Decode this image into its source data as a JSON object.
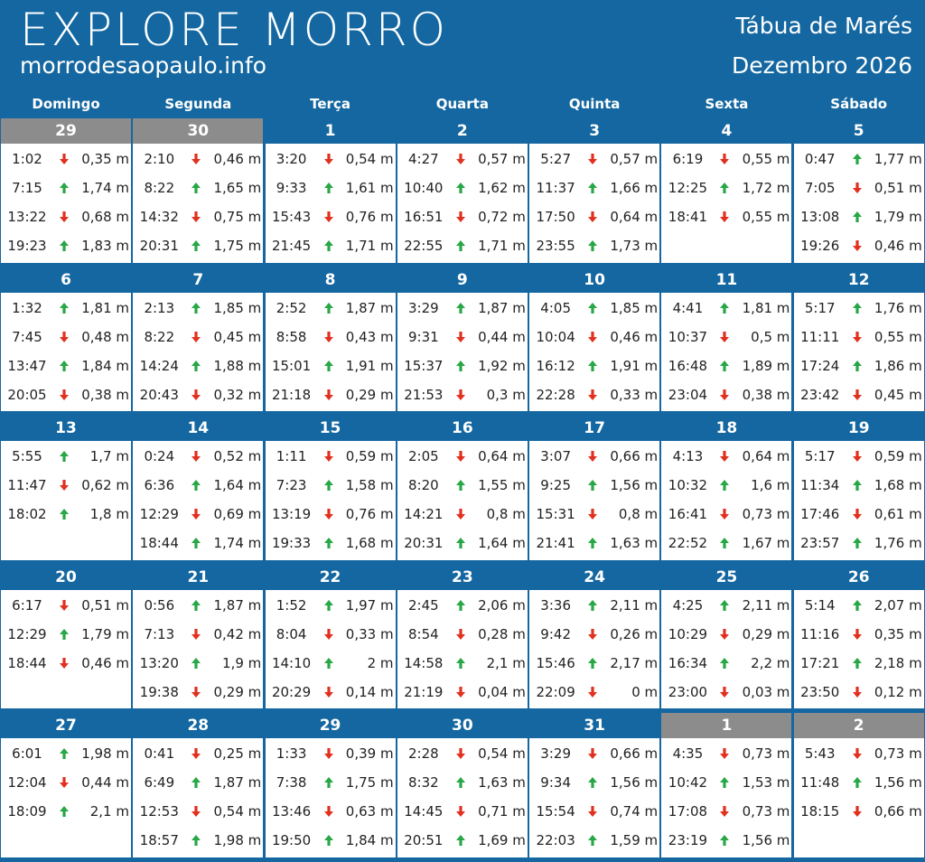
{
  "header": {
    "logo": "EXPLORE MORRO",
    "site": "morrodesaopaulo.info",
    "title": "Tábua de Marés",
    "month": "Dezembro 2026"
  },
  "weekdays": [
    "Domingo",
    "Segunda",
    "Terça",
    "Quarta",
    "Quinta",
    "Sexta",
    "Sábado"
  ],
  "weeks": [
    [
      {
        "day": "29",
        "other_month": true,
        "tides": [
          [
            "1:02",
            "down",
            "0,35 m"
          ],
          [
            "7:15",
            "up",
            "1,74 m"
          ],
          [
            "13:22",
            "down",
            "0,68 m"
          ],
          [
            "19:23",
            "up",
            "1,83 m"
          ]
        ]
      },
      {
        "day": "30",
        "other_month": true,
        "tides": [
          [
            "2:10",
            "down",
            "0,46 m"
          ],
          [
            "8:22",
            "up",
            "1,65 m"
          ],
          [
            "14:32",
            "down",
            "0,75 m"
          ],
          [
            "20:31",
            "up",
            "1,75 m"
          ]
        ]
      },
      {
        "day": "1",
        "tides": [
          [
            "3:20",
            "down",
            "0,54 m"
          ],
          [
            "9:33",
            "up",
            "1,61 m"
          ],
          [
            "15:43",
            "down",
            "0,76 m"
          ],
          [
            "21:45",
            "up",
            "1,71 m"
          ]
        ]
      },
      {
        "day": "2",
        "tides": [
          [
            "4:27",
            "down",
            "0,57 m"
          ],
          [
            "10:40",
            "up",
            "1,62 m"
          ],
          [
            "16:51",
            "down",
            "0,72 m"
          ],
          [
            "22:55",
            "up",
            "1,71 m"
          ]
        ]
      },
      {
        "day": "3",
        "tides": [
          [
            "5:27",
            "down",
            "0,57 m"
          ],
          [
            "11:37",
            "up",
            "1,66 m"
          ],
          [
            "17:50",
            "down",
            "0,64 m"
          ],
          [
            "23:55",
            "up",
            "1,73 m"
          ]
        ]
      },
      {
        "day": "4",
        "tides": [
          [
            "6:19",
            "down",
            "0,55 m"
          ],
          [
            "12:25",
            "up",
            "1,72 m"
          ],
          [
            "18:41",
            "down",
            "0,55 m"
          ]
        ]
      },
      {
        "day": "5",
        "tides": [
          [
            "0:47",
            "up",
            "1,77 m"
          ],
          [
            "7:05",
            "down",
            "0,51 m"
          ],
          [
            "13:08",
            "up",
            "1,79 m"
          ],
          [
            "19:26",
            "down",
            "0,46 m"
          ]
        ]
      }
    ],
    [
      {
        "day": "6",
        "tides": [
          [
            "1:32",
            "up",
            "1,81 m"
          ],
          [
            "7:45",
            "down",
            "0,48 m"
          ],
          [
            "13:47",
            "up",
            "1,84 m"
          ],
          [
            "20:05",
            "down",
            "0,38 m"
          ]
        ]
      },
      {
        "day": "7",
        "tides": [
          [
            "2:13",
            "up",
            "1,85 m"
          ],
          [
            "8:22",
            "down",
            "0,45 m"
          ],
          [
            "14:24",
            "up",
            "1,88 m"
          ],
          [
            "20:43",
            "down",
            "0,32 m"
          ]
        ]
      },
      {
        "day": "8",
        "tides": [
          [
            "2:52",
            "up",
            "1,87 m"
          ],
          [
            "8:58",
            "down",
            "0,43 m"
          ],
          [
            "15:01",
            "up",
            "1,91 m"
          ],
          [
            "21:18",
            "down",
            "0,29 m"
          ]
        ]
      },
      {
        "day": "9",
        "tides": [
          [
            "3:29",
            "up",
            "1,87 m"
          ],
          [
            "9:31",
            "down",
            "0,44 m"
          ],
          [
            "15:37",
            "up",
            "1,92 m"
          ],
          [
            "21:53",
            "down",
            "0,3 m"
          ]
        ]
      },
      {
        "day": "10",
        "tides": [
          [
            "4:05",
            "up",
            "1,85 m"
          ],
          [
            "10:04",
            "down",
            "0,46 m"
          ],
          [
            "16:12",
            "up",
            "1,91 m"
          ],
          [
            "22:28",
            "down",
            "0,33 m"
          ]
        ]
      },
      {
        "day": "11",
        "tides": [
          [
            "4:41",
            "up",
            "1,81 m"
          ],
          [
            "10:37",
            "down",
            "0,5 m"
          ],
          [
            "16:48",
            "up",
            "1,89 m"
          ],
          [
            "23:04",
            "down",
            "0,38 m"
          ]
        ]
      },
      {
        "day": "12",
        "tides": [
          [
            "5:17",
            "up",
            "1,76 m"
          ],
          [
            "11:11",
            "down",
            "0,55 m"
          ],
          [
            "17:24",
            "up",
            "1,86 m"
          ],
          [
            "23:42",
            "down",
            "0,45 m"
          ]
        ]
      }
    ],
    [
      {
        "day": "13",
        "tides": [
          [
            "5:55",
            "up",
            "1,7 m"
          ],
          [
            "11:47",
            "down",
            "0,62 m"
          ],
          [
            "18:02",
            "up",
            "1,8 m"
          ]
        ]
      },
      {
        "day": "14",
        "tides": [
          [
            "0:24",
            "down",
            "0,52 m"
          ],
          [
            "6:36",
            "up",
            "1,64 m"
          ],
          [
            "12:29",
            "down",
            "0,69 m"
          ],
          [
            "18:44",
            "up",
            "1,74 m"
          ]
        ]
      },
      {
        "day": "15",
        "tides": [
          [
            "1:11",
            "down",
            "0,59 m"
          ],
          [
            "7:23",
            "up",
            "1,58 m"
          ],
          [
            "13:19",
            "down",
            "0,76 m"
          ],
          [
            "19:33",
            "up",
            "1,68 m"
          ]
        ]
      },
      {
        "day": "16",
        "tides": [
          [
            "2:05",
            "down",
            "0,64 m"
          ],
          [
            "8:20",
            "up",
            "1,55 m"
          ],
          [
            "14:21",
            "down",
            "0,8 m"
          ],
          [
            "20:31",
            "up",
            "1,64 m"
          ]
        ]
      },
      {
        "day": "17",
        "tides": [
          [
            "3:07",
            "down",
            "0,66 m"
          ],
          [
            "9:25",
            "up",
            "1,56 m"
          ],
          [
            "15:31",
            "down",
            "0,8 m"
          ],
          [
            "21:41",
            "up",
            "1,63 m"
          ]
        ]
      },
      {
        "day": "18",
        "tides": [
          [
            "4:13",
            "down",
            "0,64 m"
          ],
          [
            "10:32",
            "up",
            "1,6 m"
          ],
          [
            "16:41",
            "down",
            "0,73 m"
          ],
          [
            "22:52",
            "up",
            "1,67 m"
          ]
        ]
      },
      {
        "day": "19",
        "tides": [
          [
            "5:17",
            "down",
            "0,59 m"
          ],
          [
            "11:34",
            "up",
            "1,68 m"
          ],
          [
            "17:46",
            "down",
            "0,61 m"
          ],
          [
            "23:57",
            "up",
            "1,76 m"
          ]
        ]
      }
    ],
    [
      {
        "day": "20",
        "tides": [
          [
            "6:17",
            "down",
            "0,51 m"
          ],
          [
            "12:29",
            "up",
            "1,79 m"
          ],
          [
            "18:44",
            "down",
            "0,46 m"
          ]
        ]
      },
      {
        "day": "21",
        "tides": [
          [
            "0:56",
            "up",
            "1,87 m"
          ],
          [
            "7:13",
            "down",
            "0,42 m"
          ],
          [
            "13:20",
            "up",
            "1,9 m"
          ],
          [
            "19:38",
            "down",
            "0,29 m"
          ]
        ]
      },
      {
        "day": "22",
        "tides": [
          [
            "1:52",
            "up",
            "1,97 m"
          ],
          [
            "8:04",
            "down",
            "0,33 m"
          ],
          [
            "14:10",
            "up",
            "2 m"
          ],
          [
            "20:29",
            "down",
            "0,14 m"
          ]
        ]
      },
      {
        "day": "23",
        "tides": [
          [
            "2:45",
            "up",
            "2,06 m"
          ],
          [
            "8:54",
            "down",
            "0,28 m"
          ],
          [
            "14:58",
            "up",
            "2,1 m"
          ],
          [
            "21:19",
            "down",
            "0,04 m"
          ]
        ]
      },
      {
        "day": "24",
        "tides": [
          [
            "3:36",
            "up",
            "2,11 m"
          ],
          [
            "9:42",
            "down",
            "0,26 m"
          ],
          [
            "15:46",
            "up",
            "2,17 m"
          ],
          [
            "22:09",
            "down",
            "0 m"
          ]
        ]
      },
      {
        "day": "25",
        "tides": [
          [
            "4:25",
            "up",
            "2,11 m"
          ],
          [
            "10:29",
            "down",
            "0,29 m"
          ],
          [
            "16:34",
            "up",
            "2,2 m"
          ],
          [
            "23:00",
            "down",
            "0,03 m"
          ]
        ]
      },
      {
        "day": "26",
        "tides": [
          [
            "5:14",
            "up",
            "2,07 m"
          ],
          [
            "11:16",
            "down",
            "0,35 m"
          ],
          [
            "17:21",
            "up",
            "2,18 m"
          ],
          [
            "23:50",
            "down",
            "0,12 m"
          ]
        ]
      }
    ],
    [
      {
        "day": "27",
        "tides": [
          [
            "6:01",
            "up",
            "1,98 m"
          ],
          [
            "12:04",
            "down",
            "0,44 m"
          ],
          [
            "18:09",
            "up",
            "2,1 m"
          ]
        ]
      },
      {
        "day": "28",
        "tides": [
          [
            "0:41",
            "down",
            "0,25 m"
          ],
          [
            "6:49",
            "up",
            "1,87 m"
          ],
          [
            "12:53",
            "down",
            "0,54 m"
          ],
          [
            "18:57",
            "up",
            "1,98 m"
          ]
        ]
      },
      {
        "day": "29",
        "tides": [
          [
            "1:33",
            "down",
            "0,39 m"
          ],
          [
            "7:38",
            "up",
            "1,75 m"
          ],
          [
            "13:46",
            "down",
            "0,63 m"
          ],
          [
            "19:50",
            "up",
            "1,84 m"
          ]
        ]
      },
      {
        "day": "30",
        "tides": [
          [
            "2:28",
            "down",
            "0,54 m"
          ],
          [
            "8:32",
            "up",
            "1,63 m"
          ],
          [
            "14:45",
            "down",
            "0,71 m"
          ],
          [
            "20:51",
            "up",
            "1,69 m"
          ]
        ]
      },
      {
        "day": "31",
        "tides": [
          [
            "3:29",
            "down",
            "0,66 m"
          ],
          [
            "9:34",
            "up",
            "1,56 m"
          ],
          [
            "15:54",
            "down",
            "0,74 m"
          ],
          [
            "22:03",
            "up",
            "1,59 m"
          ]
        ]
      },
      {
        "day": "1",
        "other_month": true,
        "tides": [
          [
            "4:35",
            "down",
            "0,73 m"
          ],
          [
            "10:42",
            "up",
            "1,53 m"
          ],
          [
            "17:08",
            "down",
            "0,73 m"
          ],
          [
            "23:19",
            "up",
            "1,56 m"
          ]
        ]
      },
      {
        "day": "2",
        "other_month": true,
        "tides": [
          [
            "5:43",
            "down",
            "0,73 m"
          ],
          [
            "11:48",
            "up",
            "1,56 m"
          ],
          [
            "18:15",
            "down",
            "0,66 m"
          ]
        ]
      }
    ]
  ]
}
